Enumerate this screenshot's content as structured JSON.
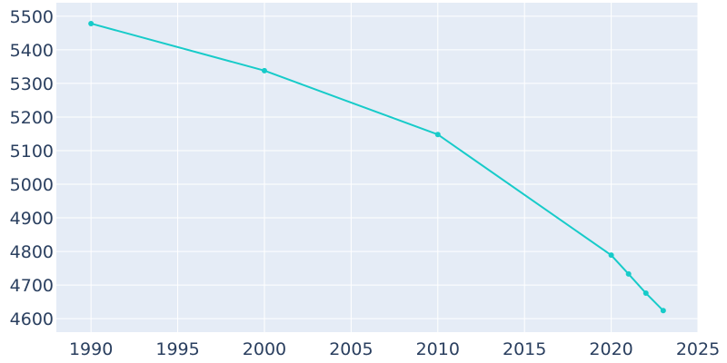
{
  "chart_data": {
    "type": "line",
    "title": "",
    "xlabel": "",
    "ylabel": "",
    "xlim": [
      1988,
      2025
    ],
    "ylim": [
      4560,
      5540
    ],
    "x_ticks": [
      1990,
      1995,
      2000,
      2005,
      2010,
      2015,
      2020,
      2025
    ],
    "y_ticks": [
      4600,
      4700,
      4800,
      4900,
      5000,
      5100,
      5200,
      5300,
      5400,
      5500
    ],
    "grid": true,
    "legend": "none",
    "series": [
      {
        "line_color": "#17cbc9",
        "points": [
          {
            "x": 1990,
            "y": 5478
          },
          {
            "x": 2000,
            "y": 5338
          },
          {
            "x": 2010,
            "y": 5148
          },
          {
            "x": 2020,
            "y": 4789
          },
          {
            "x": 2021,
            "y": 4733
          },
          {
            "x": 2022,
            "y": 4676
          },
          {
            "x": 2023,
            "y": 4624
          }
        ]
      }
    ],
    "colors": {
      "plot_background": "#e5ecf6",
      "grid": "#ffffff",
      "tick_text": "#2a3f5f"
    }
  }
}
